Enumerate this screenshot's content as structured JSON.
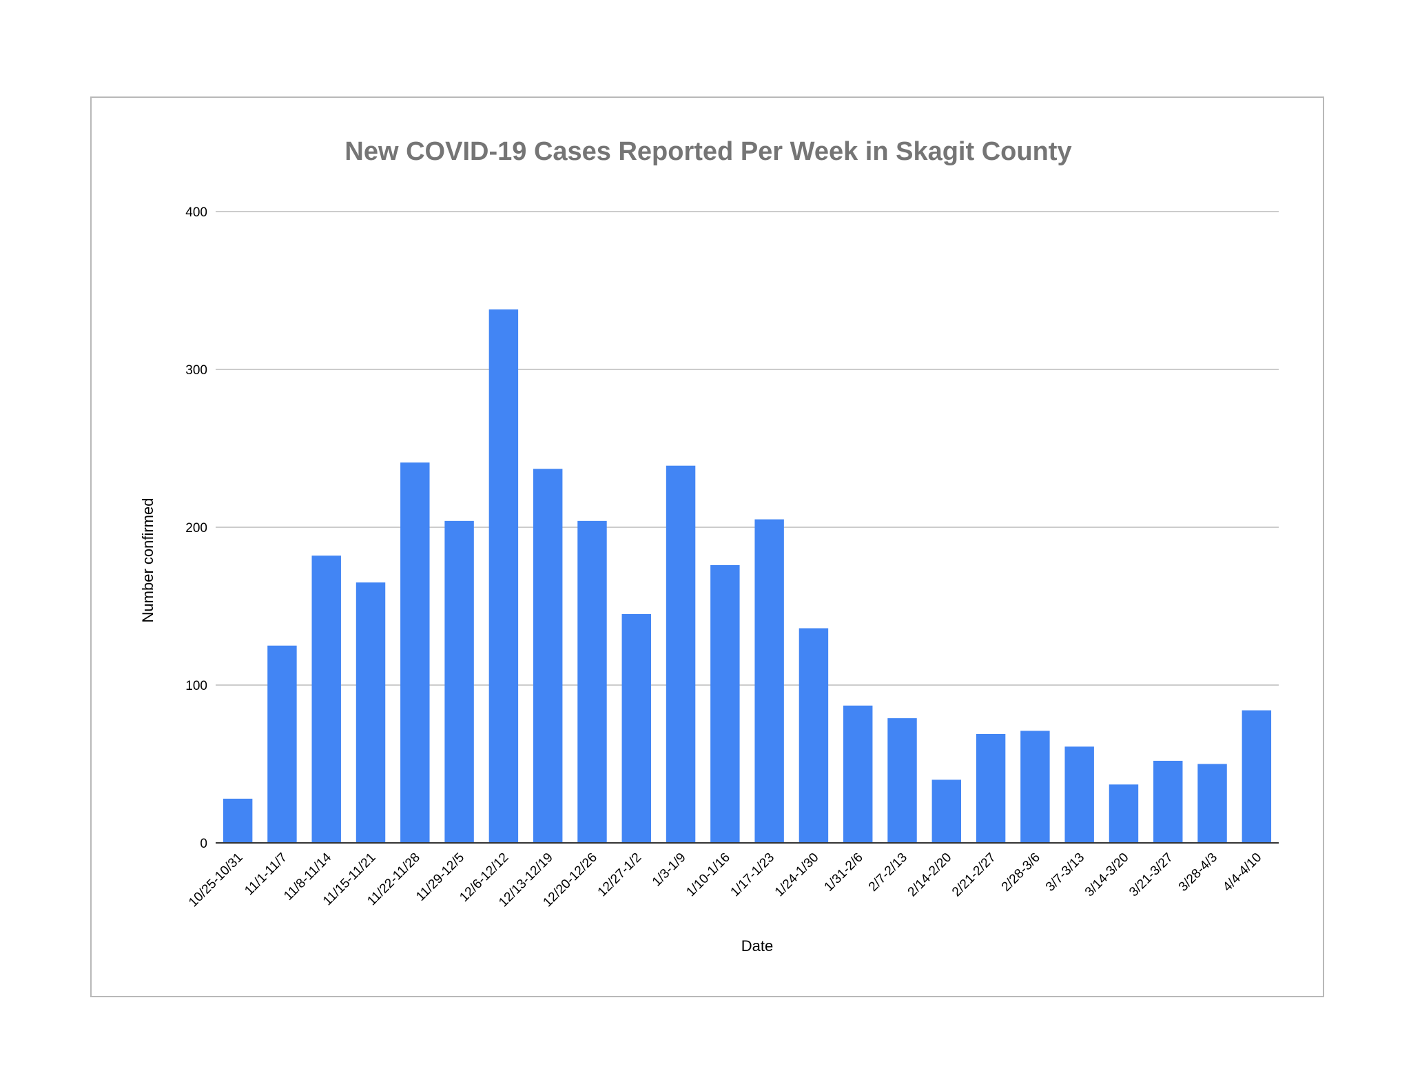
{
  "colors": {
    "bar": "#4285f4",
    "grid": "#cccccc",
    "title": "#757575"
  },
  "chart_data": {
    "type": "bar",
    "title": "New COVID-19 Cases Reported Per Week in Skagit County",
    "xlabel": "Date",
    "ylabel": "Number confirmed",
    "ylim": [
      0,
      400
    ],
    "yticks": [
      0,
      100,
      200,
      300,
      400
    ],
    "grid": true,
    "legend": "none",
    "categories": [
      "10/25-10/31",
      "11/1-11/7",
      "11/8-11/14",
      "11/15-11/21",
      "11/22-11/28",
      "11/29-12/5",
      "12/6-12/12",
      "12/13-12/19",
      "12/20-12/26",
      "12/27-1/2",
      "1/3-1/9",
      "1/10-1/16",
      "1/17-1/23",
      "1/24-1/30",
      "1/31-2/6",
      "2/7-2/13",
      "2/14-2/20",
      "2/21-2/27",
      "2/28-3/6",
      "3/7-3/13",
      "3/14-3/20",
      "3/21-3/27",
      "3/28-4/3",
      "4/4-4/10"
    ],
    "values": [
      28,
      125,
      182,
      165,
      241,
      204,
      338,
      237,
      204,
      145,
      239,
      176,
      205,
      136,
      87,
      79,
      40,
      69,
      71,
      61,
      37,
      52,
      50,
      84
    ]
  }
}
